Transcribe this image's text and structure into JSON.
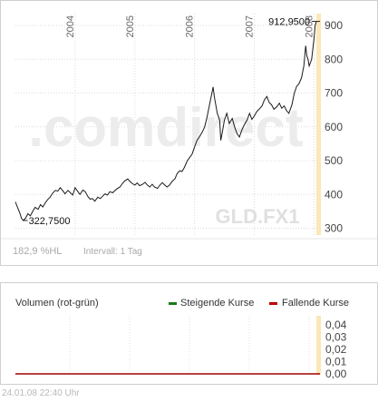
{
  "chart_data": [
    {
      "type": "line",
      "symbol": "GLD.FX1",
      "watermark": ".comdirect",
      "x_tick_labels": [
        "2004",
        "2005",
        "2006",
        "2007",
        "2008"
      ],
      "y_tick_labels": [
        "300",
        "400",
        "500",
        "600",
        "700",
        "800",
        "900"
      ],
      "ylim": [
        280,
        935
      ],
      "grid": "on",
      "annotations": {
        "high_label": "912,9500",
        "low_label": "322,7500"
      },
      "performance_label": "182,9 %HL",
      "interval_label": "Intervall: 1 Tag",
      "series": [
        {
          "values": [
            [
              2003.0,
              378
            ],
            [
              2003.04,
              360
            ],
            [
              2003.08,
              342
            ],
            [
              2003.1,
              330
            ],
            [
              2003.13,
              323
            ],
            [
              2003.17,
              330
            ],
            [
              2003.21,
              343
            ],
            [
              2003.25,
              337
            ],
            [
              2003.29,
              350
            ],
            [
              2003.33,
              362
            ],
            [
              2003.38,
              356
            ],
            [
              2003.42,
              370
            ],
            [
              2003.46,
              363
            ],
            [
              2003.5,
              375
            ],
            [
              2003.54,
              385
            ],
            [
              2003.58,
              392
            ],
            [
              2003.63,
              405
            ],
            [
              2003.67,
              412
            ],
            [
              2003.71,
              410
            ],
            [
              2003.75,
              420
            ],
            [
              2003.79,
              412
            ],
            [
              2003.83,
              402
            ],
            [
              2003.88,
              412
            ],
            [
              2003.92,
              405
            ],
            [
              2003.96,
              398
            ],
            [
              2004.0,
              420
            ],
            [
              2004.04,
              410
            ],
            [
              2004.08,
              400
            ],
            [
              2004.13,
              413
            ],
            [
              2004.17,
              408
            ],
            [
              2004.21,
              395
            ],
            [
              2004.25,
              386
            ],
            [
              2004.29,
              388
            ],
            [
              2004.33,
              380
            ],
            [
              2004.38,
              392
            ],
            [
              2004.42,
              388
            ],
            [
              2004.46,
              395
            ],
            [
              2004.5,
              402
            ],
            [
              2004.54,
              398
            ],
            [
              2004.58,
              408
            ],
            [
              2004.63,
              405
            ],
            [
              2004.67,
              412
            ],
            [
              2004.71,
              418
            ],
            [
              2004.75,
              422
            ],
            [
              2004.79,
              432
            ],
            [
              2004.83,
              440
            ],
            [
              2004.88,
              446
            ],
            [
              2004.92,
              438
            ],
            [
              2004.96,
              432
            ],
            [
              2005.0,
              428
            ],
            [
              2005.04,
              434
            ],
            [
              2005.08,
              426
            ],
            [
              2005.13,
              430
            ],
            [
              2005.17,
              436
            ],
            [
              2005.21,
              428
            ],
            [
              2005.25,
              422
            ],
            [
              2005.29,
              430
            ],
            [
              2005.33,
              422
            ],
            [
              2005.38,
              418
            ],
            [
              2005.42,
              428
            ],
            [
              2005.46,
              435
            ],
            [
              2005.5,
              428
            ],
            [
              2005.54,
              422
            ],
            [
              2005.58,
              428
            ],
            [
              2005.63,
              440
            ],
            [
              2005.67,
              446
            ],
            [
              2005.71,
              462
            ],
            [
              2005.75,
              470
            ],
            [
              2005.79,
              468
            ],
            [
              2005.83,
              480
            ],
            [
              2005.88,
              500
            ],
            [
              2005.92,
              510
            ],
            [
              2005.96,
              520
            ],
            [
              2006.0,
              540
            ],
            [
              2006.04,
              560
            ],
            [
              2006.08,
              570
            ],
            [
              2006.13,
              585
            ],
            [
              2006.17,
              600
            ],
            [
              2006.21,
              630
            ],
            [
              2006.25,
              665
            ],
            [
              2006.29,
              700
            ],
            [
              2006.31,
              718
            ],
            [
              2006.33,
              690
            ],
            [
              2006.38,
              640
            ],
            [
              2006.42,
              620
            ],
            [
              2006.44,
              560
            ],
            [
              2006.46,
              580
            ],
            [
              2006.5,
              620
            ],
            [
              2006.54,
              640
            ],
            [
              2006.58,
              610
            ],
            [
              2006.63,
              625
            ],
            [
              2006.67,
              600
            ],
            [
              2006.71,
              580
            ],
            [
              2006.75,
              570
            ],
            [
              2006.79,
              590
            ],
            [
              2006.83,
              605
            ],
            [
              2006.88,
              620
            ],
            [
              2006.92,
              640
            ],
            [
              2006.96,
              622
            ],
            [
              2007.0,
              632
            ],
            [
              2007.04,
              645
            ],
            [
              2007.08,
              652
            ],
            [
              2007.13,
              662
            ],
            [
              2007.17,
              680
            ],
            [
              2007.21,
              690
            ],
            [
              2007.25,
              672
            ],
            [
              2007.29,
              665
            ],
            [
              2007.33,
              652
            ],
            [
              2007.38,
              660
            ],
            [
              2007.42,
              670
            ],
            [
              2007.46,
              655
            ],
            [
              2007.5,
              662
            ],
            [
              2007.54,
              648
            ],
            [
              2007.58,
              640
            ],
            [
              2007.63,
              665
            ],
            [
              2007.67,
              700
            ],
            [
              2007.71,
              720
            ],
            [
              2007.75,
              728
            ],
            [
              2007.79,
              745
            ],
            [
              2007.83,
              780
            ],
            [
              2007.86,
              840
            ],
            [
              2007.88,
              810
            ],
            [
              2007.9,
              800
            ],
            [
              2007.92,
              780
            ],
            [
              2007.94,
              790
            ],
            [
              2007.96,
              800
            ],
            [
              2007.98,
              830
            ],
            [
              2008.0,
              860
            ],
            [
              2008.02,
              900
            ],
            [
              2008.04,
              912
            ]
          ]
        }
      ]
    },
    {
      "type": "bar",
      "title": "Volumen (rot-grün)",
      "legend": [
        "Steigende Kurse",
        "Fallende Kurse"
      ],
      "legend_colors": [
        "#1a7a1a",
        "#c00000"
      ],
      "legend_placement": "top-right",
      "y_tick_labels": [
        "0,04",
        "0,03",
        "0,02",
        "0,01",
        "0,00"
      ],
      "ylim": [
        0,
        0.04
      ],
      "grid": "on",
      "values": []
    }
  ],
  "footer": {
    "timestamp": "24.01.08   22:40 Uhr"
  }
}
